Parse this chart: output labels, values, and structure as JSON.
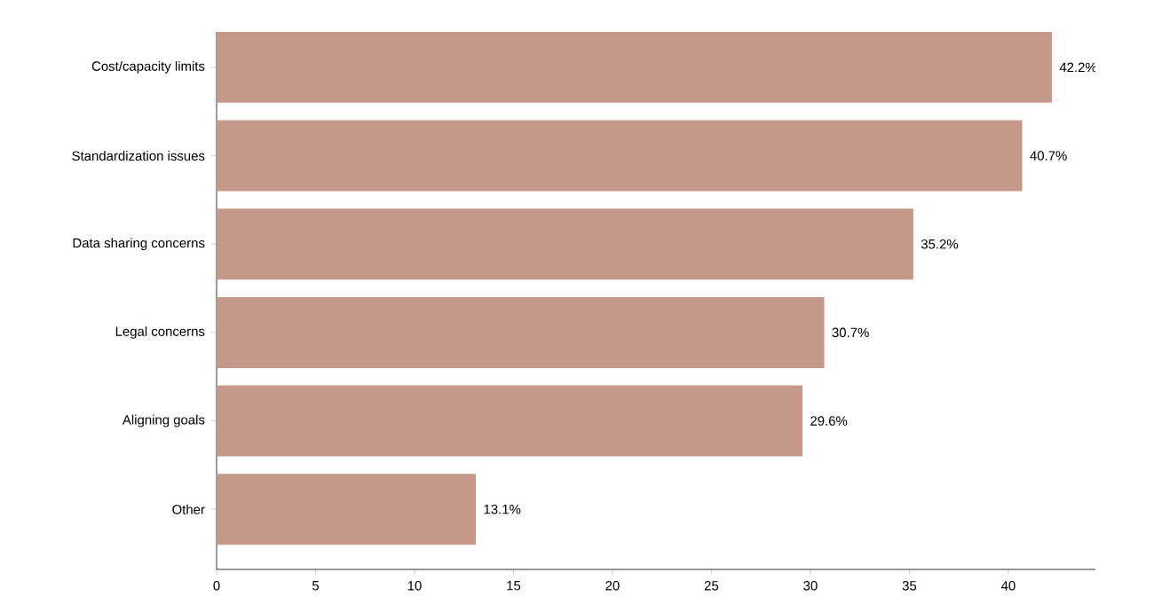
{
  "chart_data": {
    "type": "bar",
    "orientation": "horizontal",
    "categories": [
      "Cost/capacity limits",
      "Standardization issues",
      "Data sharing concerns",
      "Legal concerns",
      "Aligning goals",
      "Other"
    ],
    "values": [
      42.2,
      40.7,
      35.2,
      30.7,
      29.6,
      13.1
    ],
    "value_labels": [
      "42.2%",
      "40.7%",
      "35.2%",
      "30.7%",
      "29.6%",
      "13.1%"
    ],
    "color": "#c4998a",
    "xlim": [
      0,
      44.4
    ],
    "xticks": [
      0,
      5,
      10,
      15,
      20,
      25,
      30,
      35,
      40
    ],
    "grid": false
  }
}
